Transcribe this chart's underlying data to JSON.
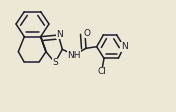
{
  "bg": "#ede8d5",
  "bc": "#1e1e2e",
  "lw": 1.1,
  "dbo": 0.045,
  "fs": 6.5,
  "figsize": [
    1.76,
    1.12
  ],
  "dpi": 100,
  "xlim": [
    0,
    176
  ],
  "ylim": [
    0,
    112
  ]
}
